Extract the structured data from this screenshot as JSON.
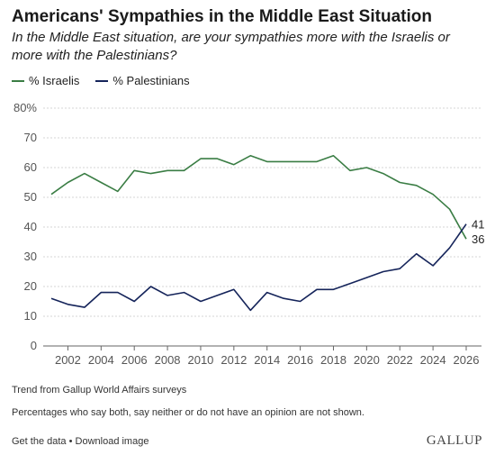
{
  "header": {
    "title": "Americans' Sympathies in the Middle East Situation",
    "subtitle": "In the Middle East situation, are your sympathies more with the Israelis or more with the Palestinians?"
  },
  "legend": [
    {
      "label": "% Israelis",
      "color": "#3a7d44"
    },
    {
      "label": "% Palestinians",
      "color": "#15245a"
    }
  ],
  "chart_data": {
    "type": "line",
    "title": "",
    "xlabel": "",
    "ylabel": "",
    "ylim": [
      0,
      80
    ],
    "xlim": [
      2001,
      2026
    ],
    "yticks": [
      0,
      10,
      20,
      30,
      40,
      50,
      60,
      70,
      80
    ],
    "ytick_labels": [
      "0",
      "10",
      "20",
      "30",
      "40",
      "50",
      "60",
      "70",
      "80%"
    ],
    "xticks": [
      2002,
      2004,
      2006,
      2008,
      2010,
      2012,
      2014,
      2016,
      2018,
      2020,
      2022,
      2024,
      2026
    ],
    "grid": "horizontal",
    "x": [
      2001,
      2002,
      2003,
      2004,
      2005,
      2006,
      2007,
      2008,
      2009,
      2010,
      2011,
      2012,
      2013,
      2014,
      2015,
      2016,
      2017,
      2018,
      2019,
      2020,
      2021,
      2022,
      2023,
      2024,
      2025,
      2026
    ],
    "series": [
      {
        "name": "% Israelis",
        "color": "#3a7d44",
        "values": [
          51,
          55,
          58,
          55,
          52,
          59,
          58,
          59,
          59,
          63,
          63,
          61,
          64,
          62,
          62,
          62,
          62,
          64,
          59,
          60,
          58,
          55,
          54,
          51,
          46,
          36
        ],
        "end_label": "36"
      },
      {
        "name": "% Palestinians",
        "color": "#15245a",
        "values": [
          16,
          14,
          13,
          18,
          18,
          15,
          20,
          17,
          18,
          15,
          17,
          19,
          12,
          18,
          16,
          15,
          19,
          19,
          21,
          23,
          25,
          26,
          31,
          27,
          33,
          41
        ],
        "end_label": "41"
      }
    ]
  },
  "notes": {
    "source": "Trend from Gallup World Affairs surveys",
    "exclusion": "Percentages who say both, say neither or do not have an opinion are not shown."
  },
  "footer": {
    "get_data": "Get the data",
    "separator": " • ",
    "download": "Download image",
    "logo": "GALLUP"
  }
}
